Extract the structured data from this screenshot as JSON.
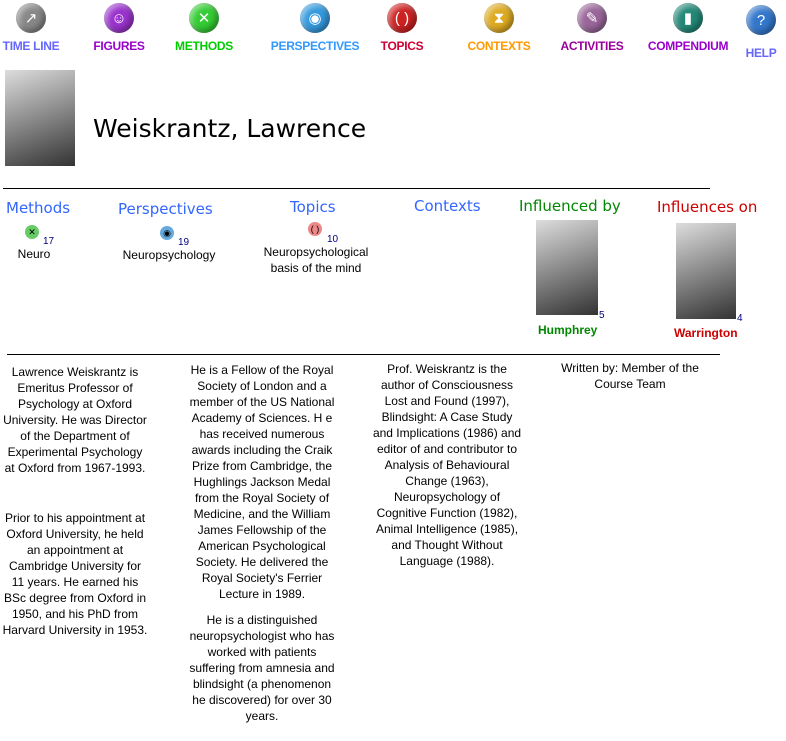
{
  "nav": [
    {
      "label": "TIME LINE",
      "color": "#6666ff",
      "icon": "timeline-icon",
      "bg": "#888"
    },
    {
      "label": "FIGURES",
      "color": "#9900cc",
      "icon": "smiley-icon",
      "bg": "#9933cc"
    },
    {
      "label": "METHODS",
      "color": "#00cc00",
      "icon": "methods-x-icon",
      "bg": "#33cc33"
    },
    {
      "label": "PERSPECTIVES",
      "color": "#3399ff",
      "icon": "eye-icon",
      "bg": "#3399dd"
    },
    {
      "label": "TOPICS",
      "color": "#cc0033",
      "icon": "topics-icon",
      "bg": "#cc2222"
    },
    {
      "label": "CONTEXTS",
      "color": "#ff9900",
      "icon": "hourglass-icon",
      "bg": "#ddaa22"
    },
    {
      "label": "ACTIVITIES",
      "color": "#990099",
      "icon": "activities-pencil-icon",
      "bg": "#996699"
    },
    {
      "label": "COMPENDIUM",
      "color": "#9900cc",
      "icon": "compendium-icon",
      "bg": "#228877"
    },
    {
      "label": "HELP",
      "color": "#6666ff",
      "icon": "help-icon",
      "bg": "#3377cc"
    }
  ],
  "person": {
    "name": "Weiskrantz, Lawrence"
  },
  "sections": {
    "methods": {
      "title": "Methods",
      "count": "17",
      "item": "Neuro"
    },
    "perspectives": {
      "title": "Perspectives",
      "count": "19",
      "item": "Neuropsychology"
    },
    "topics": {
      "title": "Topics",
      "count": "10",
      "item_line1": "Neuropsychological",
      "item_line2": "basis of the mind"
    },
    "contexts": {
      "title": "Contexts"
    },
    "influenced_by": {
      "title": "Influenced by",
      "name": "Humphrey",
      "count": "5"
    },
    "influences_on": {
      "title": "Influences on",
      "name": "Warrington",
      "count": "4"
    }
  },
  "colors": {
    "section_blue": "#3366ff",
    "influenced_green": "#008800",
    "influences_red": "#cc0000"
  },
  "bio": {
    "col1": [
      "Lawrence Weiskrantz is Emeritus Professor of Psychology at Oxford University. He was Director of the Department of Experimental Psychology at Oxford from 1967-1993.",
      "Prior to his appointment at Oxford University, he held an appointment at Cambridge University for 11  years. He earned his BSc degree from Oxford in 1950, and his PhD from Harvard University in 1953."
    ],
    "col2": [
      "He is a Fellow of the Royal Society of London and a member of the US National Academy of Sciences. H e has received numerous awards including the Craik Prize from Cambridge, the Hughlings Jackson Medal from the Royal Society of Medicine, and the William James Fellowship of the American Psychological Society. He delivered the Royal Society's Ferrier Lecture in 1989.",
      "He is a distinguished neuropsychologist who has worked with patients suffering from amnesia and blindsight (a phenomenon he discovered) for over 30 years."
    ],
    "col3": [
      "Prof. Weiskrantz is the author of Consciousness Lost and Found (1997), Blindsight: A Case Study and  Implications (1986) and editor of and contributor to Analysis of Behavioural Change (1963), Neuropsychology of Cognitive Function (1982), Animal Intelligence (1985), and Thought Without Language (1988)."
    ],
    "written_by": "Written by: Member of the Course Team"
  }
}
